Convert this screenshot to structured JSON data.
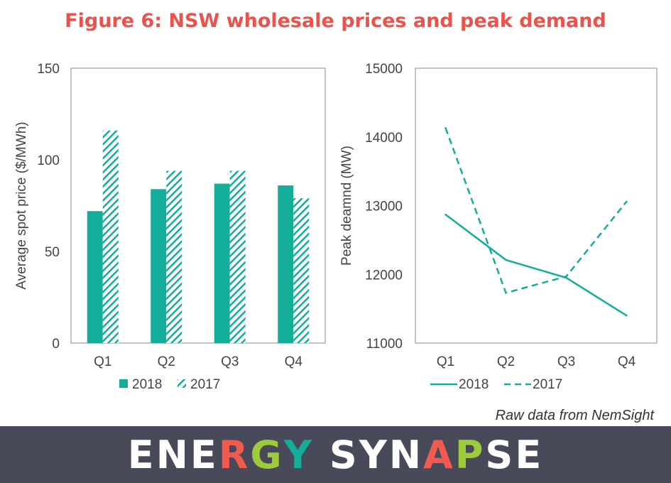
{
  "title": "Figure 6: NSW wholesale prices and peak demand",
  "source_note": "Raw data from NemSight",
  "logo_text": "ENERGY SYNAPSE",
  "colors": {
    "title": "#e9534b",
    "series": "#14ad9a",
    "axis": "#888888",
    "footer_bg": "#484a5a",
    "logo_white": "#ffffff",
    "logo_accents": [
      "#f15b4f",
      "#9ccb3b",
      "#14ad9a",
      "#f15b4f",
      "#9ccb3b"
    ]
  },
  "chart_data": [
    {
      "type": "bar",
      "categories": [
        "Q1",
        "Q2",
        "Q3",
        "Q4"
      ],
      "series": [
        {
          "name": "2018",
          "values": [
            72,
            84,
            87,
            86
          ],
          "style": "solid"
        },
        {
          "name": "2017",
          "values": [
            116,
            94,
            94,
            79
          ],
          "style": "hatched"
        }
      ],
      "ylabel": "Average spot price ($/MWh)",
      "ylim": [
        0,
        150
      ],
      "yticks": [
        "0",
        "50",
        "100",
        "150"
      ],
      "grid": false,
      "legend": "bottom"
    },
    {
      "type": "line",
      "categories": [
        "Q1",
        "Q2",
        "Q3",
        "Q4"
      ],
      "series": [
        {
          "name": "2018",
          "values": [
            12870,
            12210,
            11950,
            11400
          ],
          "style": "solid"
        },
        {
          "name": "2017",
          "values": [
            14130,
            11730,
            11970,
            13060
          ],
          "style": "dashed"
        }
      ],
      "ylabel": "Peak deamnd (MW)",
      "ylim": [
        11000,
        15000
      ],
      "yticks": [
        "11000",
        "12000",
        "13000",
        "14000",
        "15000"
      ],
      "grid": false,
      "legend": "bottom"
    }
  ]
}
